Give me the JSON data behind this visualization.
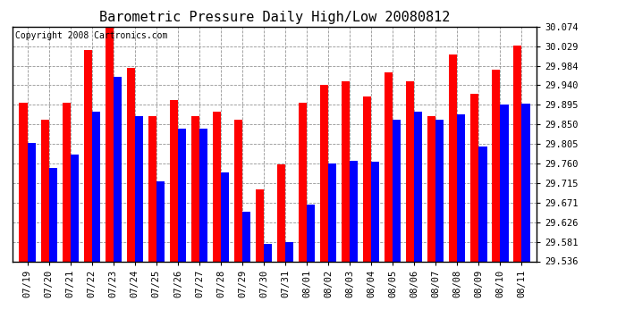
{
  "title": "Barometric Pressure Daily High/Low 20080812",
  "copyright": "Copyright 2008 Cartronics.com",
  "dates": [
    "07/19",
    "07/20",
    "07/21",
    "07/22",
    "07/23",
    "07/24",
    "07/25",
    "07/26",
    "07/27",
    "07/28",
    "07/29",
    "07/30",
    "07/31",
    "08/01",
    "08/02",
    "08/03",
    "08/04",
    "08/05",
    "08/06",
    "08/07",
    "08/08",
    "08/09",
    "08/10",
    "08/11"
  ],
  "highs": [
    29.9,
    29.86,
    29.9,
    30.02,
    30.074,
    29.98,
    29.87,
    29.905,
    29.87,
    29.88,
    29.86,
    29.7,
    29.758,
    29.9,
    29.94,
    29.95,
    29.915,
    29.97,
    29.95,
    29.87,
    30.01,
    29.92,
    29.975,
    30.03
  ],
  "lows": [
    29.808,
    29.75,
    29.78,
    29.88,
    29.96,
    29.87,
    29.72,
    29.84,
    29.84,
    29.74,
    29.65,
    29.575,
    29.58,
    29.666,
    29.76,
    29.766,
    29.765,
    29.86,
    29.88,
    29.86,
    29.873,
    29.8,
    29.895,
    29.898
  ],
  "ymin": 29.536,
  "ymax": 30.074,
  "yticks": [
    29.536,
    29.581,
    29.626,
    29.671,
    29.715,
    29.76,
    29.805,
    29.85,
    29.895,
    29.94,
    29.984,
    30.029,
    30.074
  ],
  "high_color": "#ff0000",
  "low_color": "#0000ff",
  "background_color": "#ffffff",
  "grid_color": "#888888",
  "title_fontsize": 11,
  "copyright_fontsize": 7,
  "tick_fontsize": 7.5
}
